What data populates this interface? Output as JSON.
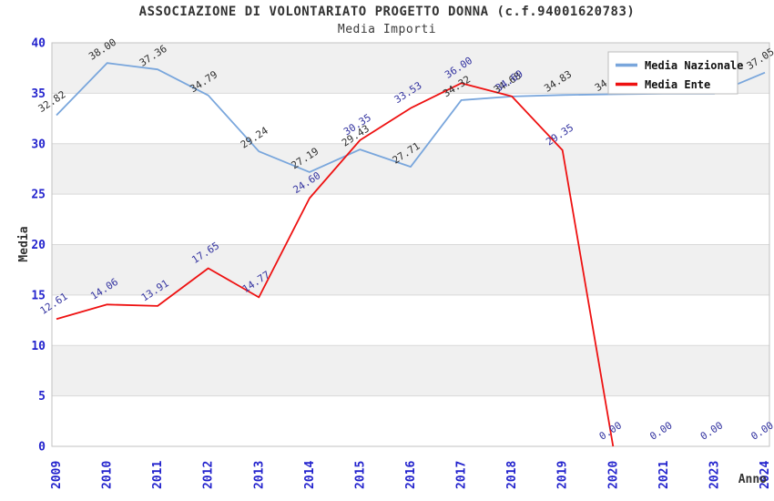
{
  "header": {
    "title": "ASSOCIAZIONE DI VOLONTARIATO PROGETTO DONNA (c.f.94001620783)",
    "subtitle": "Media Importi"
  },
  "chart_data": {
    "type": "line",
    "title": "ASSOCIAZIONE DI VOLONTARIATO PROGETTO DONNA (c.f.94001620783)",
    "subtitle": "Media Importi",
    "xlabel": "Anno",
    "ylabel": "Media",
    "ylim": [
      0,
      40
    ],
    "ytick_step": 5,
    "yticks": [
      0,
      5,
      10,
      15,
      20,
      25,
      30,
      35,
      40
    ],
    "categories": [
      "2009",
      "2010",
      "2011",
      "2012",
      "2013",
      "2014",
      "2015",
      "2016",
      "2017",
      "2018",
      "2019",
      "2020",
      "2021",
      "2023",
      "2024"
    ],
    "series": [
      {
        "name": "Media Nazionale",
        "line_color": "#79a6dc",
        "label_color": "#2e2e2e",
        "values": [
          32.82,
          38.0,
          37.36,
          34.79,
          29.24,
          27.19,
          29.43,
          27.71,
          34.32,
          34.68,
          34.83,
          34.9,
          34.95,
          34.95,
          37.05
        ]
      },
      {
        "name": "Media Ente",
        "line_color": "#ee1111",
        "label_color": "#3333a0",
        "values": [
          12.61,
          14.06,
          13.91,
          17.65,
          14.77,
          24.6,
          30.35,
          33.53,
          36.0,
          34.69,
          29.35,
          0.0,
          0.0,
          0.0,
          0.0
        ],
        "line_end_index": 11
      }
    ],
    "legend": {
      "position": "top-right",
      "items": [
        "Media Nazionale",
        "Media Ente"
      ]
    },
    "grid": true,
    "band_colors": [
      "#f0f0f0",
      "#ffffff"
    ],
    "axis_tick_color": "#2323cd",
    "frame_color": "#c2c2c2",
    "gridline_color": "#d9d9d9",
    "data_label_rotation_deg": -33,
    "data_label_format": "0.00"
  }
}
